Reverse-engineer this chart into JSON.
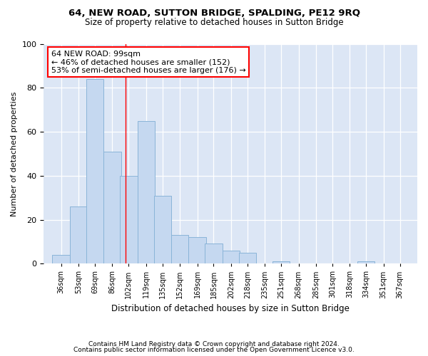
{
  "title1": "64, NEW ROAD, SUTTON BRIDGE, SPALDING, PE12 9RQ",
  "title2": "Size of property relative to detached houses in Sutton Bridge",
  "xlabel": "Distribution of detached houses by size in Sutton Bridge",
  "ylabel": "Number of detached properties",
  "footnote1": "Contains HM Land Registry data © Crown copyright and database right 2024.",
  "footnote2": "Contains public sector information licensed under the Open Government Licence v3.0.",
  "annotation_line1": "64 NEW ROAD: 99sqm",
  "annotation_line2": "← 46% of detached houses are smaller (152)",
  "annotation_line3": "53% of semi-detached houses are larger (176) →",
  "bar_color": "#c5d8f0",
  "bar_edge_color": "#8ab4d8",
  "vline_color": "red",
  "vline_x": 99,
  "fig_background": "#ffffff",
  "axes_background": "#dce6f5",
  "categories": [
    "36sqm",
    "53sqm",
    "69sqm",
    "86sqm",
    "102sqm",
    "119sqm",
    "135sqm",
    "152sqm",
    "169sqm",
    "185sqm",
    "202sqm",
    "218sqm",
    "235sqm",
    "251sqm",
    "268sqm",
    "285sqm",
    "301sqm",
    "318sqm",
    "334sqm",
    "351sqm",
    "367sqm"
  ],
  "bin_centers": [
    36,
    53,
    69,
    86,
    102,
    119,
    135,
    152,
    169,
    185,
    202,
    218,
    235,
    251,
    268,
    285,
    301,
    318,
    334,
    351,
    367
  ],
  "bin_width": 17,
  "values": [
    4,
    26,
    84,
    51,
    40,
    65,
    31,
    13,
    12,
    9,
    6,
    5,
    0,
    1,
    0,
    0,
    0,
    0,
    1,
    0,
    0
  ],
  "ylim": [
    0,
    100
  ],
  "yticks": [
    0,
    20,
    40,
    60,
    80,
    100
  ],
  "xlim": [
    19,
    384
  ]
}
